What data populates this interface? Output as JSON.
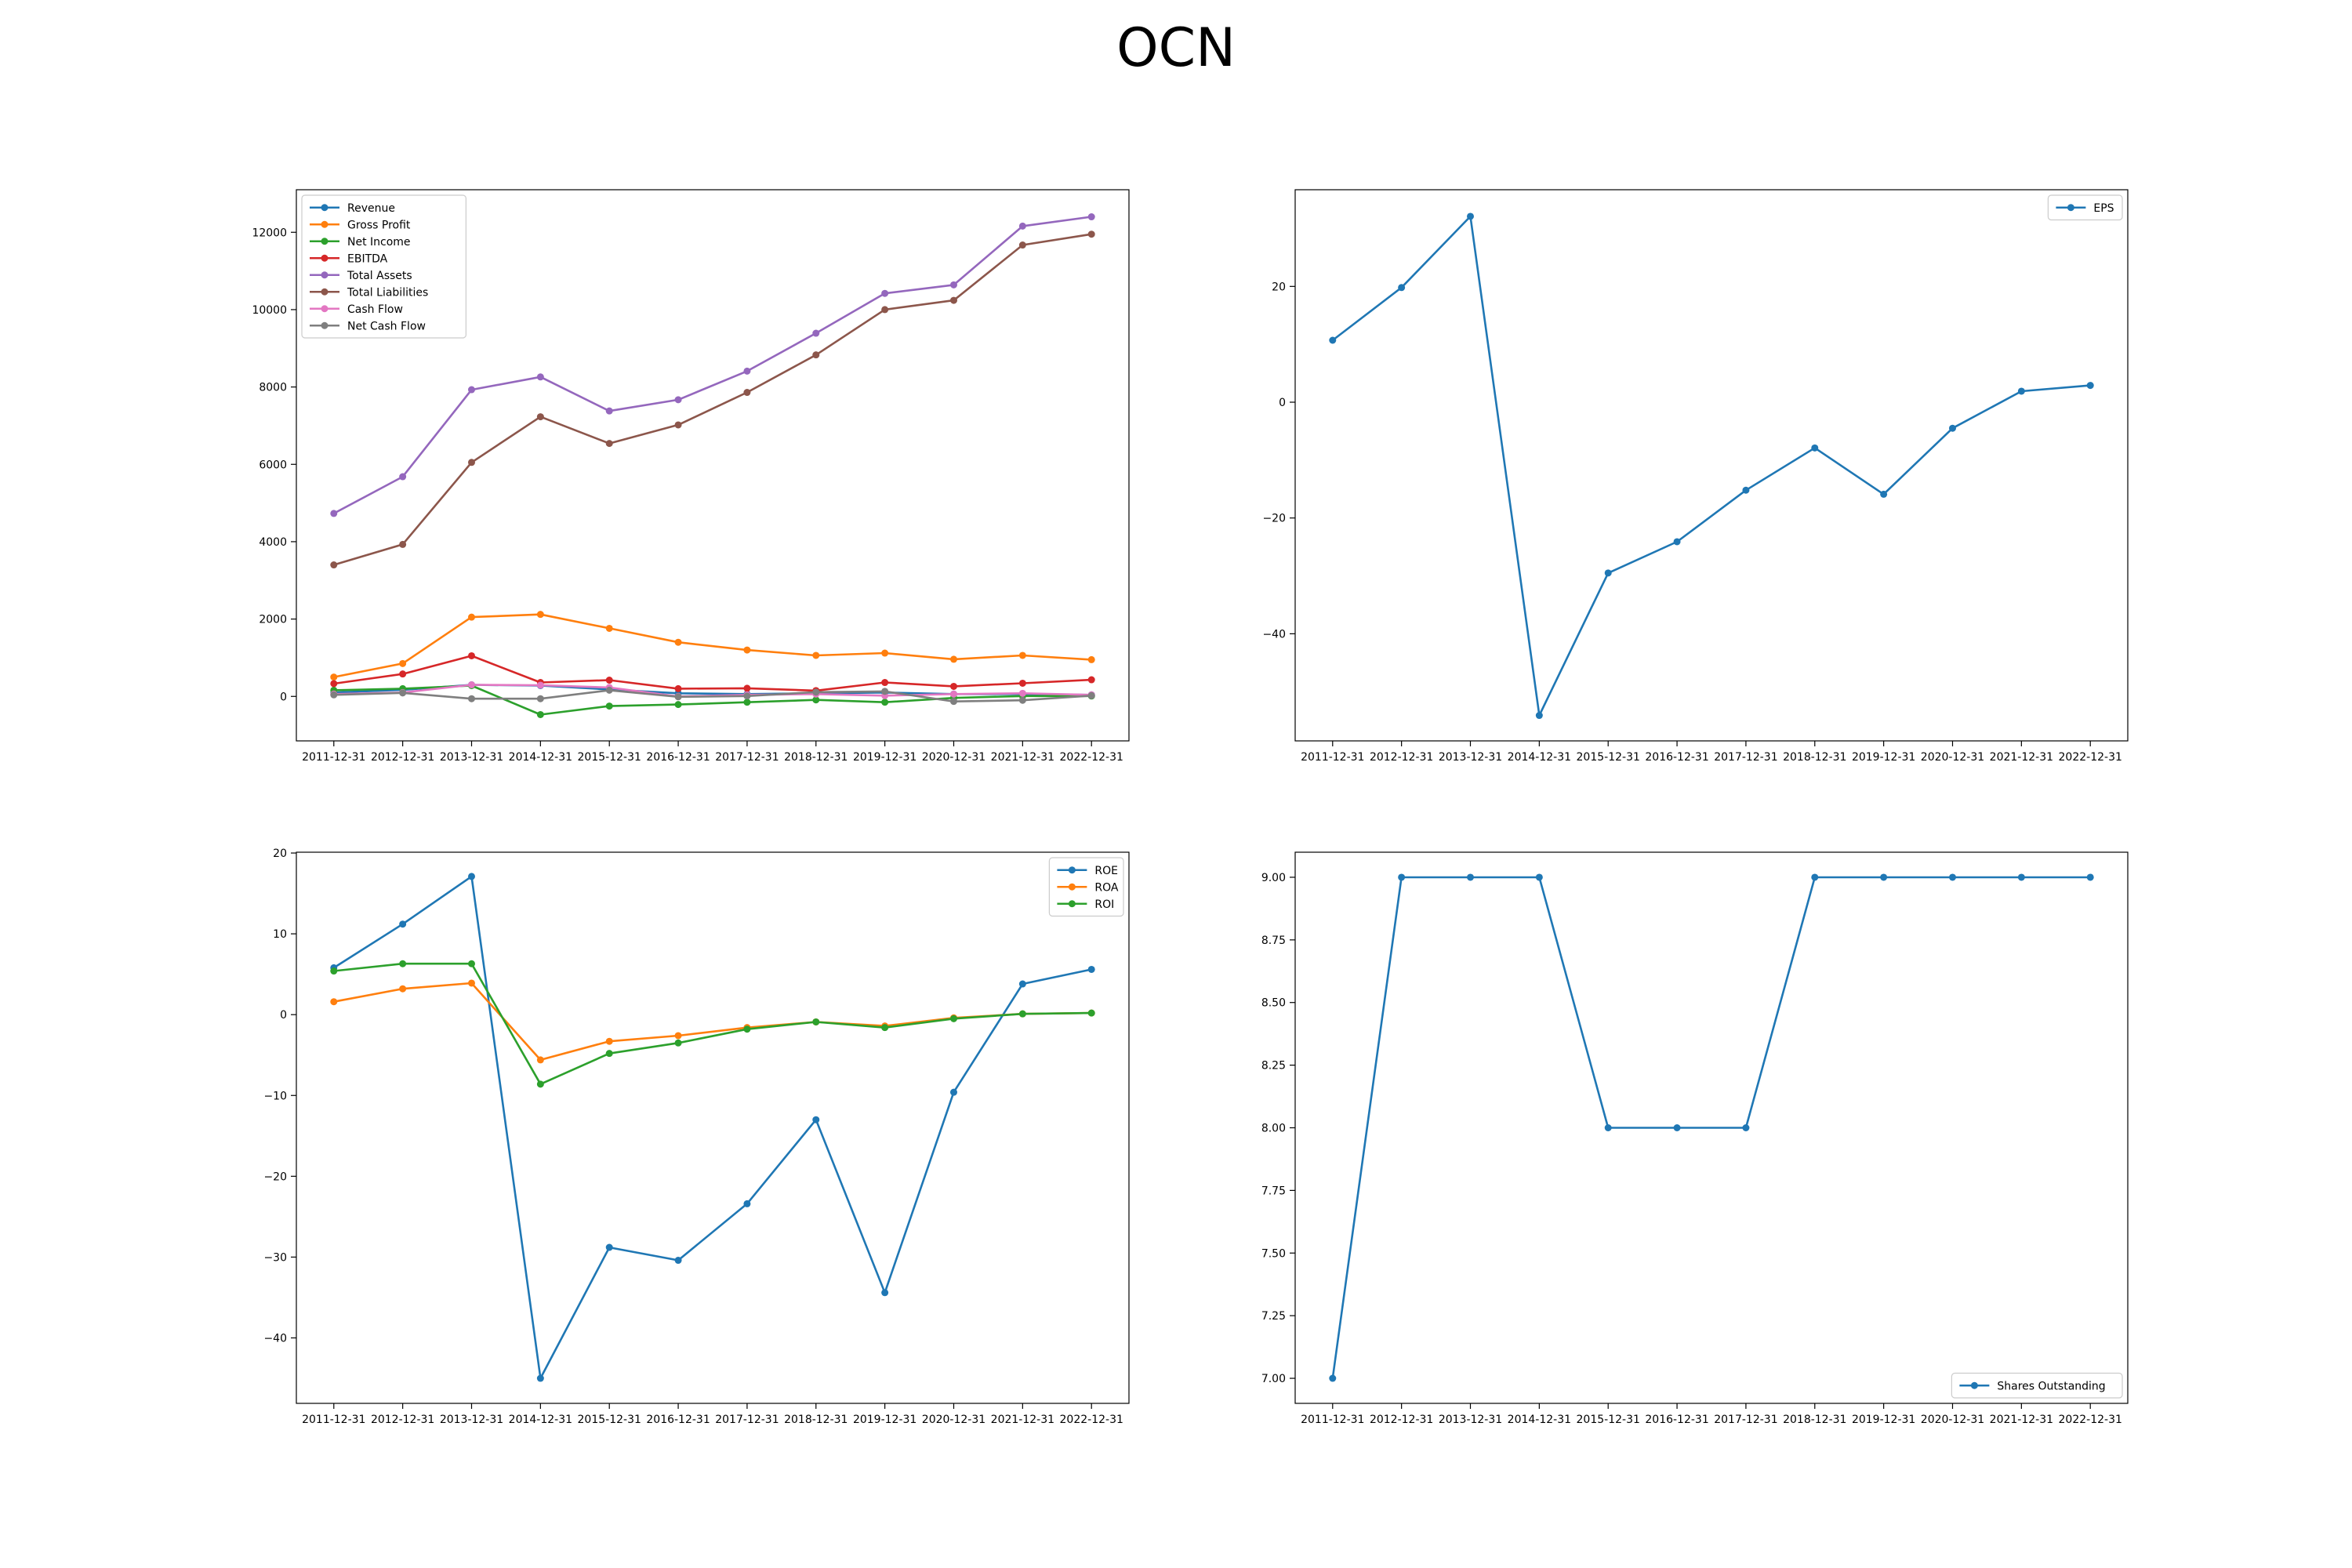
{
  "title": "OCN",
  "colors": {
    "blue": "#1f77b4",
    "orange": "#ff7f0e",
    "green": "#2ca02c",
    "red": "#d62728",
    "purple": "#9467bd",
    "brown": "#8c564b",
    "pink": "#e377c2",
    "gray": "#7f7f7f"
  },
  "chart_data": [
    {
      "type": "line",
      "categories": [
        "2011-12-31",
        "2012-12-31",
        "2013-12-31",
        "2014-12-31",
        "2015-12-31",
        "2016-12-31",
        "2017-12-31",
        "2018-12-31",
        "2019-12-31",
        "2020-12-31",
        "2021-12-31",
        "2022-12-31"
      ],
      "ylim": [
        -1150,
        13100
      ],
      "yticks": [
        0,
        2000,
        4000,
        6000,
        8000,
        10000,
        12000
      ],
      "legend": "upper-left",
      "series": [
        {
          "name": "Revenue",
          "color": "#1f77b4",
          "values": [
            100,
            170,
            300,
            280,
            180,
            80,
            60,
            80,
            100,
            60,
            60,
            40
          ]
        },
        {
          "name": "Gross Profit",
          "color": "#ff7f0e",
          "values": [
            500,
            850,
            2050,
            2120,
            1760,
            1400,
            1200,
            1060,
            1120,
            960,
            1060,
            950
          ]
        },
        {
          "name": "Net Income",
          "color": "#2ca02c",
          "values": [
            160,
            200,
            280,
            -470,
            -250,
            -210,
            -150,
            -90,
            -150,
            -40,
            10,
            10
          ]
        },
        {
          "name": "EBITDA",
          "color": "#d62728",
          "values": [
            330,
            580,
            1050,
            360,
            420,
            200,
            210,
            150,
            360,
            260,
            340,
            430
          ]
        },
        {
          "name": "Total Assets",
          "color": "#9467bd",
          "values": [
            4730,
            5680,
            7930,
            8260,
            7380,
            7670,
            8410,
            9390,
            10420,
            10640,
            12160,
            12400
          ]
        },
        {
          "name": "Total Liabilities",
          "color": "#8c564b",
          "values": [
            3400,
            3930,
            6050,
            7230,
            6540,
            7020,
            7860,
            8830,
            10000,
            10240,
            11670,
            11950
          ]
        },
        {
          "name": "Cash Flow",
          "color": "#e377c2",
          "values": [
            60,
            100,
            300,
            290,
            230,
            0,
            40,
            60,
            20,
            60,
            80,
            40
          ]
        },
        {
          "name": "Net Cash Flow",
          "color": "#7f7f7f",
          "values": [
            40,
            90,
            -60,
            -60,
            160,
            -10,
            10,
            110,
            130,
            -130,
            -100,
            20
          ]
        }
      ]
    },
    {
      "type": "line",
      "categories": [
        "2011-12-31",
        "2012-12-31",
        "2013-12-31",
        "2014-12-31",
        "2015-12-31",
        "2016-12-31",
        "2017-12-31",
        "2018-12-31",
        "2019-12-31",
        "2020-12-31",
        "2021-12-31",
        "2022-12-31"
      ],
      "ylim": [
        -58.5,
        36.7
      ],
      "yticks": [
        -40,
        -20,
        0,
        20
      ],
      "legend": "upper-right",
      "series": [
        {
          "name": "EPS",
          "color": "#1f77b4",
          "values": [
            10.7,
            19.8,
            32.1,
            -54.1,
            -29.5,
            -24.1,
            -15.2,
            -7.9,
            -15.9,
            -4.5,
            1.9,
            2.9
          ]
        }
      ]
    },
    {
      "type": "line",
      "categories": [
        "2011-12-31",
        "2012-12-31",
        "2013-12-31",
        "2014-12-31",
        "2015-12-31",
        "2016-12-31",
        "2017-12-31",
        "2018-12-31",
        "2019-12-31",
        "2020-12-31",
        "2021-12-31",
        "2022-12-31"
      ],
      "ylim": [
        -48.1,
        20.1
      ],
      "yticks": [
        -40,
        -30,
        -20,
        -10,
        0,
        10,
        20
      ],
      "legend": "upper-right",
      "series": [
        {
          "name": "ROE",
          "color": "#1f77b4",
          "values": [
            5.8,
            11.2,
            17.1,
            -45.0,
            -28.8,
            -30.4,
            -23.4,
            -13.0,
            -34.4,
            -9.6,
            3.8,
            5.6
          ]
        },
        {
          "name": "ROA",
          "color": "#ff7f0e",
          "values": [
            1.6,
            3.2,
            3.9,
            -5.6,
            -3.3,
            -2.6,
            -1.6,
            -0.9,
            -1.4,
            -0.4,
            0.1,
            0.2
          ]
        },
        {
          "name": "ROI",
          "color": "#2ca02c",
          "values": [
            5.4,
            6.3,
            6.3,
            -8.6,
            -4.8,
            -3.5,
            -1.8,
            -0.9,
            -1.6,
            -0.5,
            0.1,
            0.2
          ]
        }
      ]
    },
    {
      "type": "line",
      "categories": [
        "2011-12-31",
        "2012-12-31",
        "2013-12-31",
        "2014-12-31",
        "2015-12-31",
        "2016-12-31",
        "2017-12-31",
        "2018-12-31",
        "2019-12-31",
        "2020-12-31",
        "2021-12-31",
        "2022-12-31"
      ],
      "ylim": [
        6.9,
        9.1
      ],
      "yticks": [
        "7.00",
        "7.25",
        "7.50",
        "7.75",
        "8.00",
        "8.25",
        "8.50",
        "8.75",
        "9.00"
      ],
      "legend": "lower-right",
      "series": [
        {
          "name": "Shares Outstanding",
          "color": "#1f77b4",
          "values": [
            7,
            9,
            9,
            9,
            8,
            8,
            8,
            9,
            9,
            9,
            9,
            9
          ]
        }
      ]
    }
  ]
}
